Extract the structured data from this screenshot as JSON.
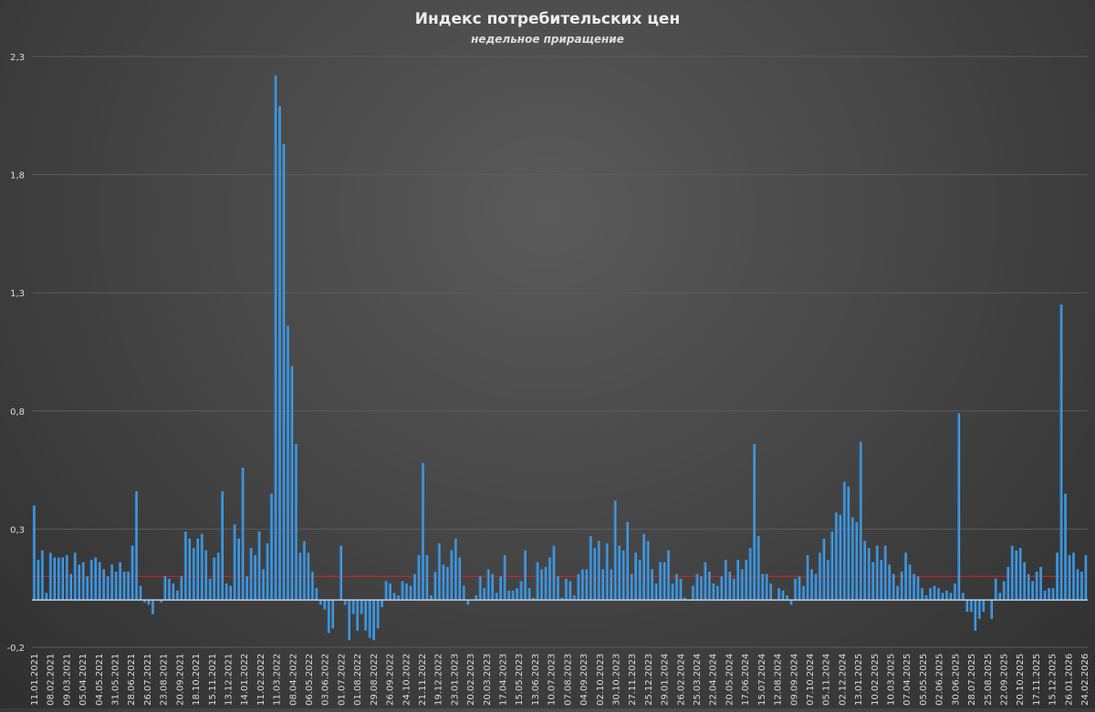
{
  "chart_data": {
    "type": "bar",
    "title": "Индекс потребительских цен",
    "subtitle": "недельное приращение",
    "xlabel": "",
    "ylabel": "",
    "ylim": [
      -0.2,
      2.3
    ],
    "y_ticks": [
      "-0,2",
      "0,3",
      "0,8",
      "1,3",
      "1,8",
      "2,3"
    ],
    "y_tick_values": [
      -0.2,
      0.3,
      0.8,
      1.3,
      1.8,
      2.3
    ],
    "reference_line": {
      "value": 0.1,
      "color": "#cc2b2b"
    },
    "grid": true,
    "colors": {
      "bar": "#2e86d1",
      "bar_highlight": "#6ab9f4",
      "axis": "#bfcfdf",
      "text": "#dddddd",
      "grid": "#5c5c5c"
    },
    "x_tick_labels": [
      "11.01.2021",
      "08.02.2021",
      "09.03.2021",
      "05.04.2021",
      "04.05.2021",
      "31.05.2021",
      "28.06.2021",
      "26.07.2021",
      "23.08.2021",
      "20.09.2021",
      "18.10.2021",
      "15.11.2021",
      "13.12.2021",
      "14.01.2022",
      "11.02.2022",
      "11.03.2022",
      "08.04.2022",
      "06.05.2022",
      "03.06.2022",
      "01.07.2022",
      "01.08.2022",
      "29.08.2022",
      "26.09.2022",
      "24.10.2022",
      "21.11.2022",
      "19.12.2022",
      "23.01.2023",
      "20.02.2023",
      "20.03.2023",
      "17.04.2023",
      "15.05.2023",
      "13.06.2023",
      "10.07.2023",
      "07.08.2023",
      "04.09.2023",
      "02.10.2023",
      "30.10.2023",
      "27.11.2023",
      "25.12.2023",
      "29.01.2024",
      "26.02.2024",
      "25.03.2024",
      "22.04.2024",
      "20.05.2024",
      "17.06.2024",
      "15.07.2024",
      "12.08.2024",
      "09.09.2024",
      "07.10.2024",
      "05.11.2024",
      "02.12.2024",
      "13.01.2025",
      "10.02.2025",
      "10.03.2025",
      "07.04.2025",
      "05.05.2025",
      "02.06.2025",
      "30.06.2025",
      "28.07.2025",
      "25.08.2025",
      "22.09.2025",
      "20.10.2025",
      "17.11.2025",
      "15.12.2025",
      "26.01.2026",
      "24.02.2026"
    ],
    "values": [
      0.4,
      0.17,
      0.21,
      0.03,
      0.2,
      0.18,
      0.18,
      0.18,
      0.19,
      0.11,
      0.2,
      0.15,
      0.16,
      0.1,
      0.17,
      0.18,
      0.16,
      0.13,
      0.1,
      0.15,
      0.12,
      0.16,
      0.12,
      0.12,
      0.23,
      0.46,
      0.06,
      -0.01,
      -0.02,
      -0.06,
      0.0,
      -0.01,
      0.1,
      0.09,
      0.07,
      0.04,
      0.1,
      0.29,
      0.26,
      0.22,
      0.26,
      0.28,
      0.21,
      0.09,
      0.18,
      0.2,
      0.46,
      0.07,
      0.06,
      0.32,
      0.26,
      0.56,
      0.1,
      0.22,
      0.19,
      0.29,
      0.13,
      0.24,
      0.45,
      2.22,
      2.09,
      1.93,
      1.16,
      0.99,
      0.66,
      0.2,
      0.25,
      0.2,
      0.12,
      0.05,
      -0.02,
      -0.04,
      -0.14,
      -0.12,
      0.0,
      0.23,
      -0.02,
      -0.17,
      -0.06,
      -0.13,
      -0.06,
      -0.13,
      -0.16,
      -0.17,
      -0.12,
      -0.03,
      0.08,
      0.07,
      0.03,
      0.02,
      0.08,
      0.07,
      0.06,
      0.11,
      0.19,
      0.58,
      0.19,
      0.02,
      0.12,
      0.24,
      0.15,
      0.14,
      0.21,
      0.26,
      0.18,
      0.06,
      -0.02,
      0.0,
      0.02,
      0.1,
      0.05,
      0.13,
      0.11,
      0.03,
      0.1,
      0.19,
      0.04,
      0.04,
      0.05,
      0.08,
      0.21,
      0.05,
      0.01,
      0.16,
      0.13,
      0.14,
      0.18,
      0.23,
      0.1,
      0.01,
      0.09,
      0.08,
      0.02,
      0.11,
      0.13,
      0.13,
      0.27,
      0.22,
      0.25,
      0.13,
      0.24,
      0.13,
      0.42,
      0.23,
      0.21,
      0.33,
      0.11,
      0.2,
      0.17,
      0.28,
      0.25,
      0.13,
      0.07,
      0.16,
      0.16,
      0.21,
      0.07,
      0.11,
      0.09,
      0.01,
      0.0,
      0.06,
      0.11,
      0.1,
      0.16,
      0.12,
      0.07,
      0.06,
      0.1,
      0.17,
      0.12,
      0.09,
      0.17,
      0.13,
      0.17,
      0.22,
      0.66,
      0.27,
      0.11,
      0.11,
      0.07,
      0.0,
      0.05,
      0.04,
      0.02,
      -0.02,
      0.09,
      0.1,
      0.06,
      0.19,
      0.13,
      0.11,
      0.2,
      0.26,
      0.17,
      0.29,
      0.37,
      0.36,
      0.5,
      0.48,
      0.35,
      0.33,
      0.67,
      0.25,
      0.22,
      0.16,
      0.23,
      0.17,
      0.23,
      0.15,
      0.11,
      0.06,
      0.12,
      0.2,
      0.15,
      0.11,
      0.1,
      0.05,
      0.02,
      0.05,
      0.06,
      0.05,
      0.03,
      0.04,
      0.03,
      0.07,
      0.79,
      0.03,
      -0.05,
      -0.05,
      -0.13,
      -0.08,
      -0.05,
      0.0,
      -0.08,
      0.09,
      0.03,
      0.08,
      0.14,
      0.23,
      0.21,
      0.22,
      0.16,
      0.11,
      0.08,
      0.12,
      0.14,
      0.04,
      0.05,
      0.05,
      0.2,
      1.25,
      0.45,
      0.19,
      0.2,
      0.13,
      0.12,
      0.19
    ]
  }
}
